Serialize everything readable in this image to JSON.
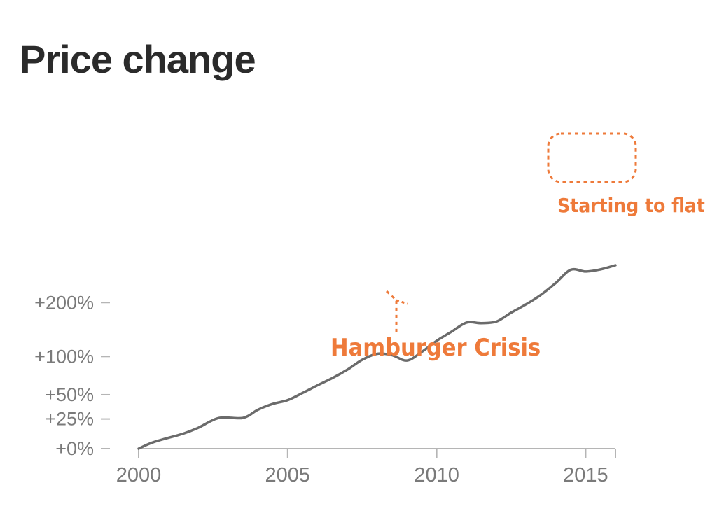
{
  "chart_data": {
    "type": "line",
    "title": "Price change",
    "xlabel": "",
    "ylabel": "",
    "y_scale": "log-like (value shown as % change)",
    "xlim": [
      2000,
      2016
    ],
    "x_ticks": [
      2000,
      2005,
      2010,
      2015
    ],
    "y_ticks": [
      {
        "value": 0,
        "label": "+0%"
      },
      {
        "value": 25,
        "label": "+25%"
      },
      {
        "value": 50,
        "label": "+50%"
      },
      {
        "value": 100,
        "label": "+100%"
      },
      {
        "value": 200,
        "label": "+200%"
      }
    ],
    "series": [
      {
        "name": "Price change",
        "x": [
          2000,
          2000.5,
          2001.5,
          2002,
          2002.7,
          2003.5,
          2004,
          2004.5,
          2005,
          2005.5,
          2006,
          2006.5,
          2007,
          2007.5,
          2008,
          2008.5,
          2009,
          2009.5,
          2010,
          2010.5,
          2011,
          2011.5,
          2012,
          2012.5,
          2013,
          2013.5,
          2014,
          2014.5,
          2015,
          2015.5,
          2016
        ],
        "y": [
          0,
          5,
          12,
          17,
          26,
          26,
          34,
          40,
          44,
          52,
          61,
          70,
          81,
          95,
          104,
          102,
          94,
          107,
          125,
          141,
          158,
          157,
          160,
          178,
          196,
          218,
          248,
          284,
          279,
          285,
          297
        ]
      }
    ],
    "annotations": [
      {
        "text": "Hamburger Crisis",
        "x": 2008.5
      },
      {
        "text": "Starting to flat",
        "x": 2015
      }
    ]
  },
  "colors": {
    "line": "#6b6b6b",
    "axis": "#b5b5b5",
    "tick_text": "#7a7a7a",
    "title": "#2b2b2b",
    "annotation": "#ee7a3a"
  }
}
